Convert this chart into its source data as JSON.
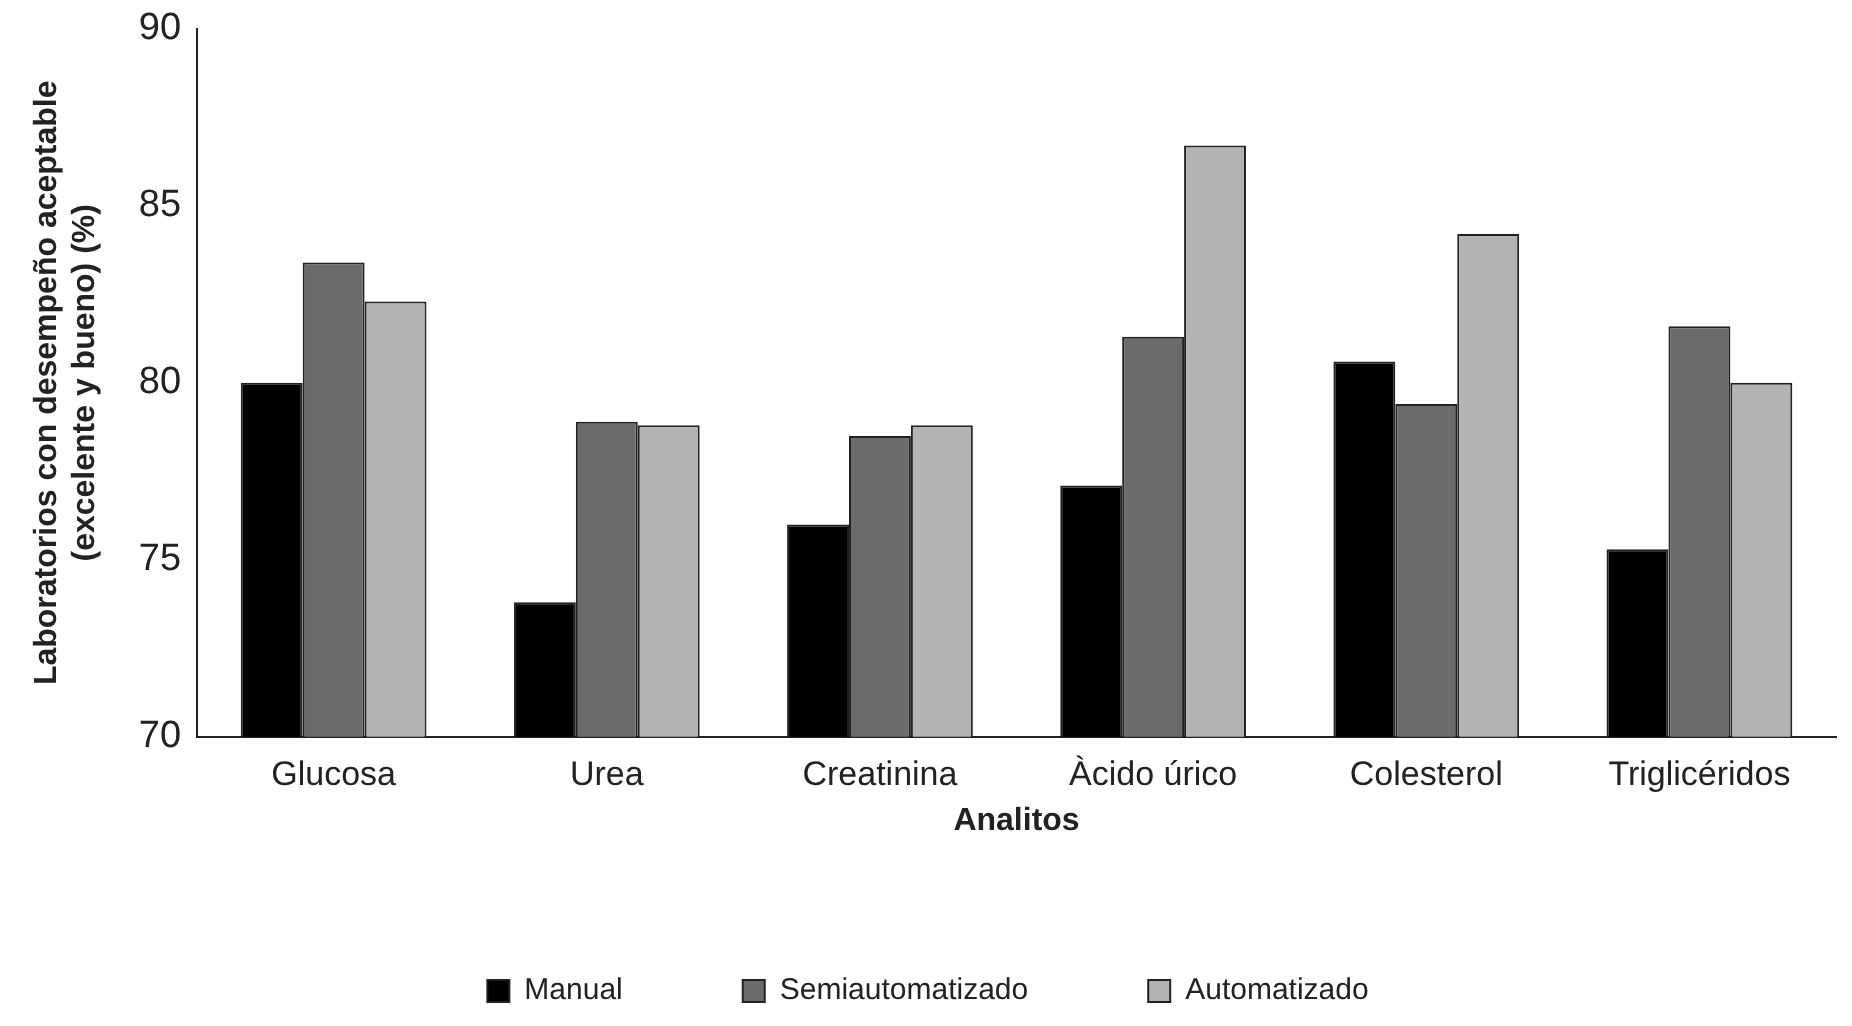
{
  "chart_data": {
    "type": "bar",
    "xlabel": "Analitos",
    "ylabel": "Laboratorios con desempeño aceptable (excelente y bueno) (%)",
    "categories": [
      "Glucosa",
      "Urea",
      "Creatinina",
      "Àcido úrico",
      "Colesterol",
      "Triglicéridos"
    ],
    "series": [
      {
        "name": "Manual",
        "color": "#000000",
        "values": [
          80.0,
          73.8,
          76.0,
          77.1,
          80.6,
          75.3
        ]
      },
      {
        "name": "Semiautomatizado",
        "color": "#6b6b6b",
        "values": [
          83.4,
          78.9,
          78.5,
          81.3,
          79.4,
          81.6
        ]
      },
      {
        "name": "Automatizado",
        "color": "#b3b3b3",
        "values": [
          82.3,
          78.8,
          78.8,
          86.7,
          84.2,
          80.0
        ]
      }
    ],
    "ylim": [
      70,
      90
    ],
    "yticks": [
      70,
      75,
      80,
      85,
      90
    ],
    "grid": false,
    "legend": "bottom"
  }
}
